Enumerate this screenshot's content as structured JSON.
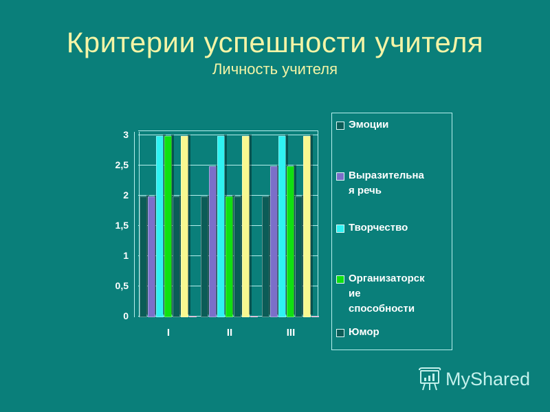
{
  "slide": {
    "title": "Критерии успешности учителя",
    "subtitle": "Личность учителя"
  },
  "chart_data": {
    "type": "bar",
    "title": "Критерии успешности учителя",
    "subtitle": "Личность учителя",
    "categories": [
      "I",
      "II",
      "III"
    ],
    "series": [
      {
        "name": "Эмоции",
        "color": "#0b5c57",
        "values": [
          2,
          2,
          2
        ]
      },
      {
        "name": "Выразительная речь",
        "color": "#7b6fc9",
        "values": [
          2,
          2.5,
          2.5
        ]
      },
      {
        "name": "Творчество",
        "color": "#2ff2f2",
        "values": [
          3,
          3,
          3
        ]
      },
      {
        "name": "Организаторские способности",
        "color": "#10e010",
        "values": [
          3,
          2,
          2.5
        ]
      },
      {
        "name": "Юмор",
        "color": "#0b5c57",
        "values": [
          2,
          2,
          2
        ]
      },
      {
        "name": "",
        "color": "#f8f890",
        "values": [
          3,
          3,
          3
        ]
      },
      {
        "name": "",
        "color": "#c7a3c7",
        "values": [
          0,
          0,
          0
        ]
      }
    ],
    "yticks": [
      "0",
      "0,5",
      "1",
      "1,5",
      "2",
      "2,5",
      "3"
    ],
    "ylim": [
      0,
      3
    ],
    "xlabel": "",
    "ylabel": "",
    "grid": true,
    "legend_position": "right",
    "style": "3d-clustered-column"
  },
  "legend": {
    "items": [
      {
        "label": "Эмоции",
        "color": "#0b5c57"
      },
      {
        "label": "Выразительна\nя речь",
        "color": "#7b6fc9"
      },
      {
        "label": "Творчество",
        "color": "#2ff2f2"
      },
      {
        "label": "Организаторск\nие\nспособности",
        "color": "#10e010"
      },
      {
        "label": "Юмор",
        "color": "#0b5c57"
      }
    ]
  },
  "watermark": {
    "text": "MyShared",
    "icon": "presentation-board-icon"
  }
}
